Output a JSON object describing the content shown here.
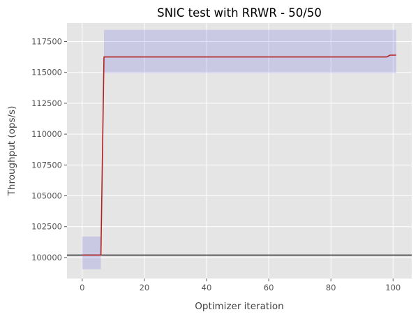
{
  "chart_data": {
    "type": "line",
    "title": "SNIC test with RRWR - 50/50",
    "xlabel": "Optimizer iteration",
    "ylabel": "Throughput (ops/s)",
    "xlim": [
      -4.9,
      106
    ],
    "ylim": [
      98300,
      119000
    ],
    "xticks": [
      0,
      20,
      40,
      60,
      80,
      100
    ],
    "yticks": [
      100000,
      102500,
      105000,
      107500,
      110000,
      112500,
      115000,
      117500
    ],
    "grid": true,
    "legend": "none",
    "background_color": "#e5e5e5",
    "grid_color": "#ffffff",
    "series": [
      {
        "x": [
          0,
          6,
          7,
          98,
          99,
          101
        ],
        "y": [
          100200,
          100200,
          116250,
          116250,
          116400,
          116400
        ],
        "color": "#b22222"
      }
    ],
    "bands": [
      {
        "x": [
          0,
          6
        ],
        "y": [
          99050,
          101700
        ],
        "color": "#4444dd",
        "opacity": 0.17
      },
      {
        "x": [
          7,
          101
        ],
        "y": [
          114950,
          118450
        ],
        "color": "#4444dd",
        "opacity": 0.17
      }
    ],
    "hlines": [
      {
        "y": 100200,
        "color": "#000000"
      }
    ]
  }
}
